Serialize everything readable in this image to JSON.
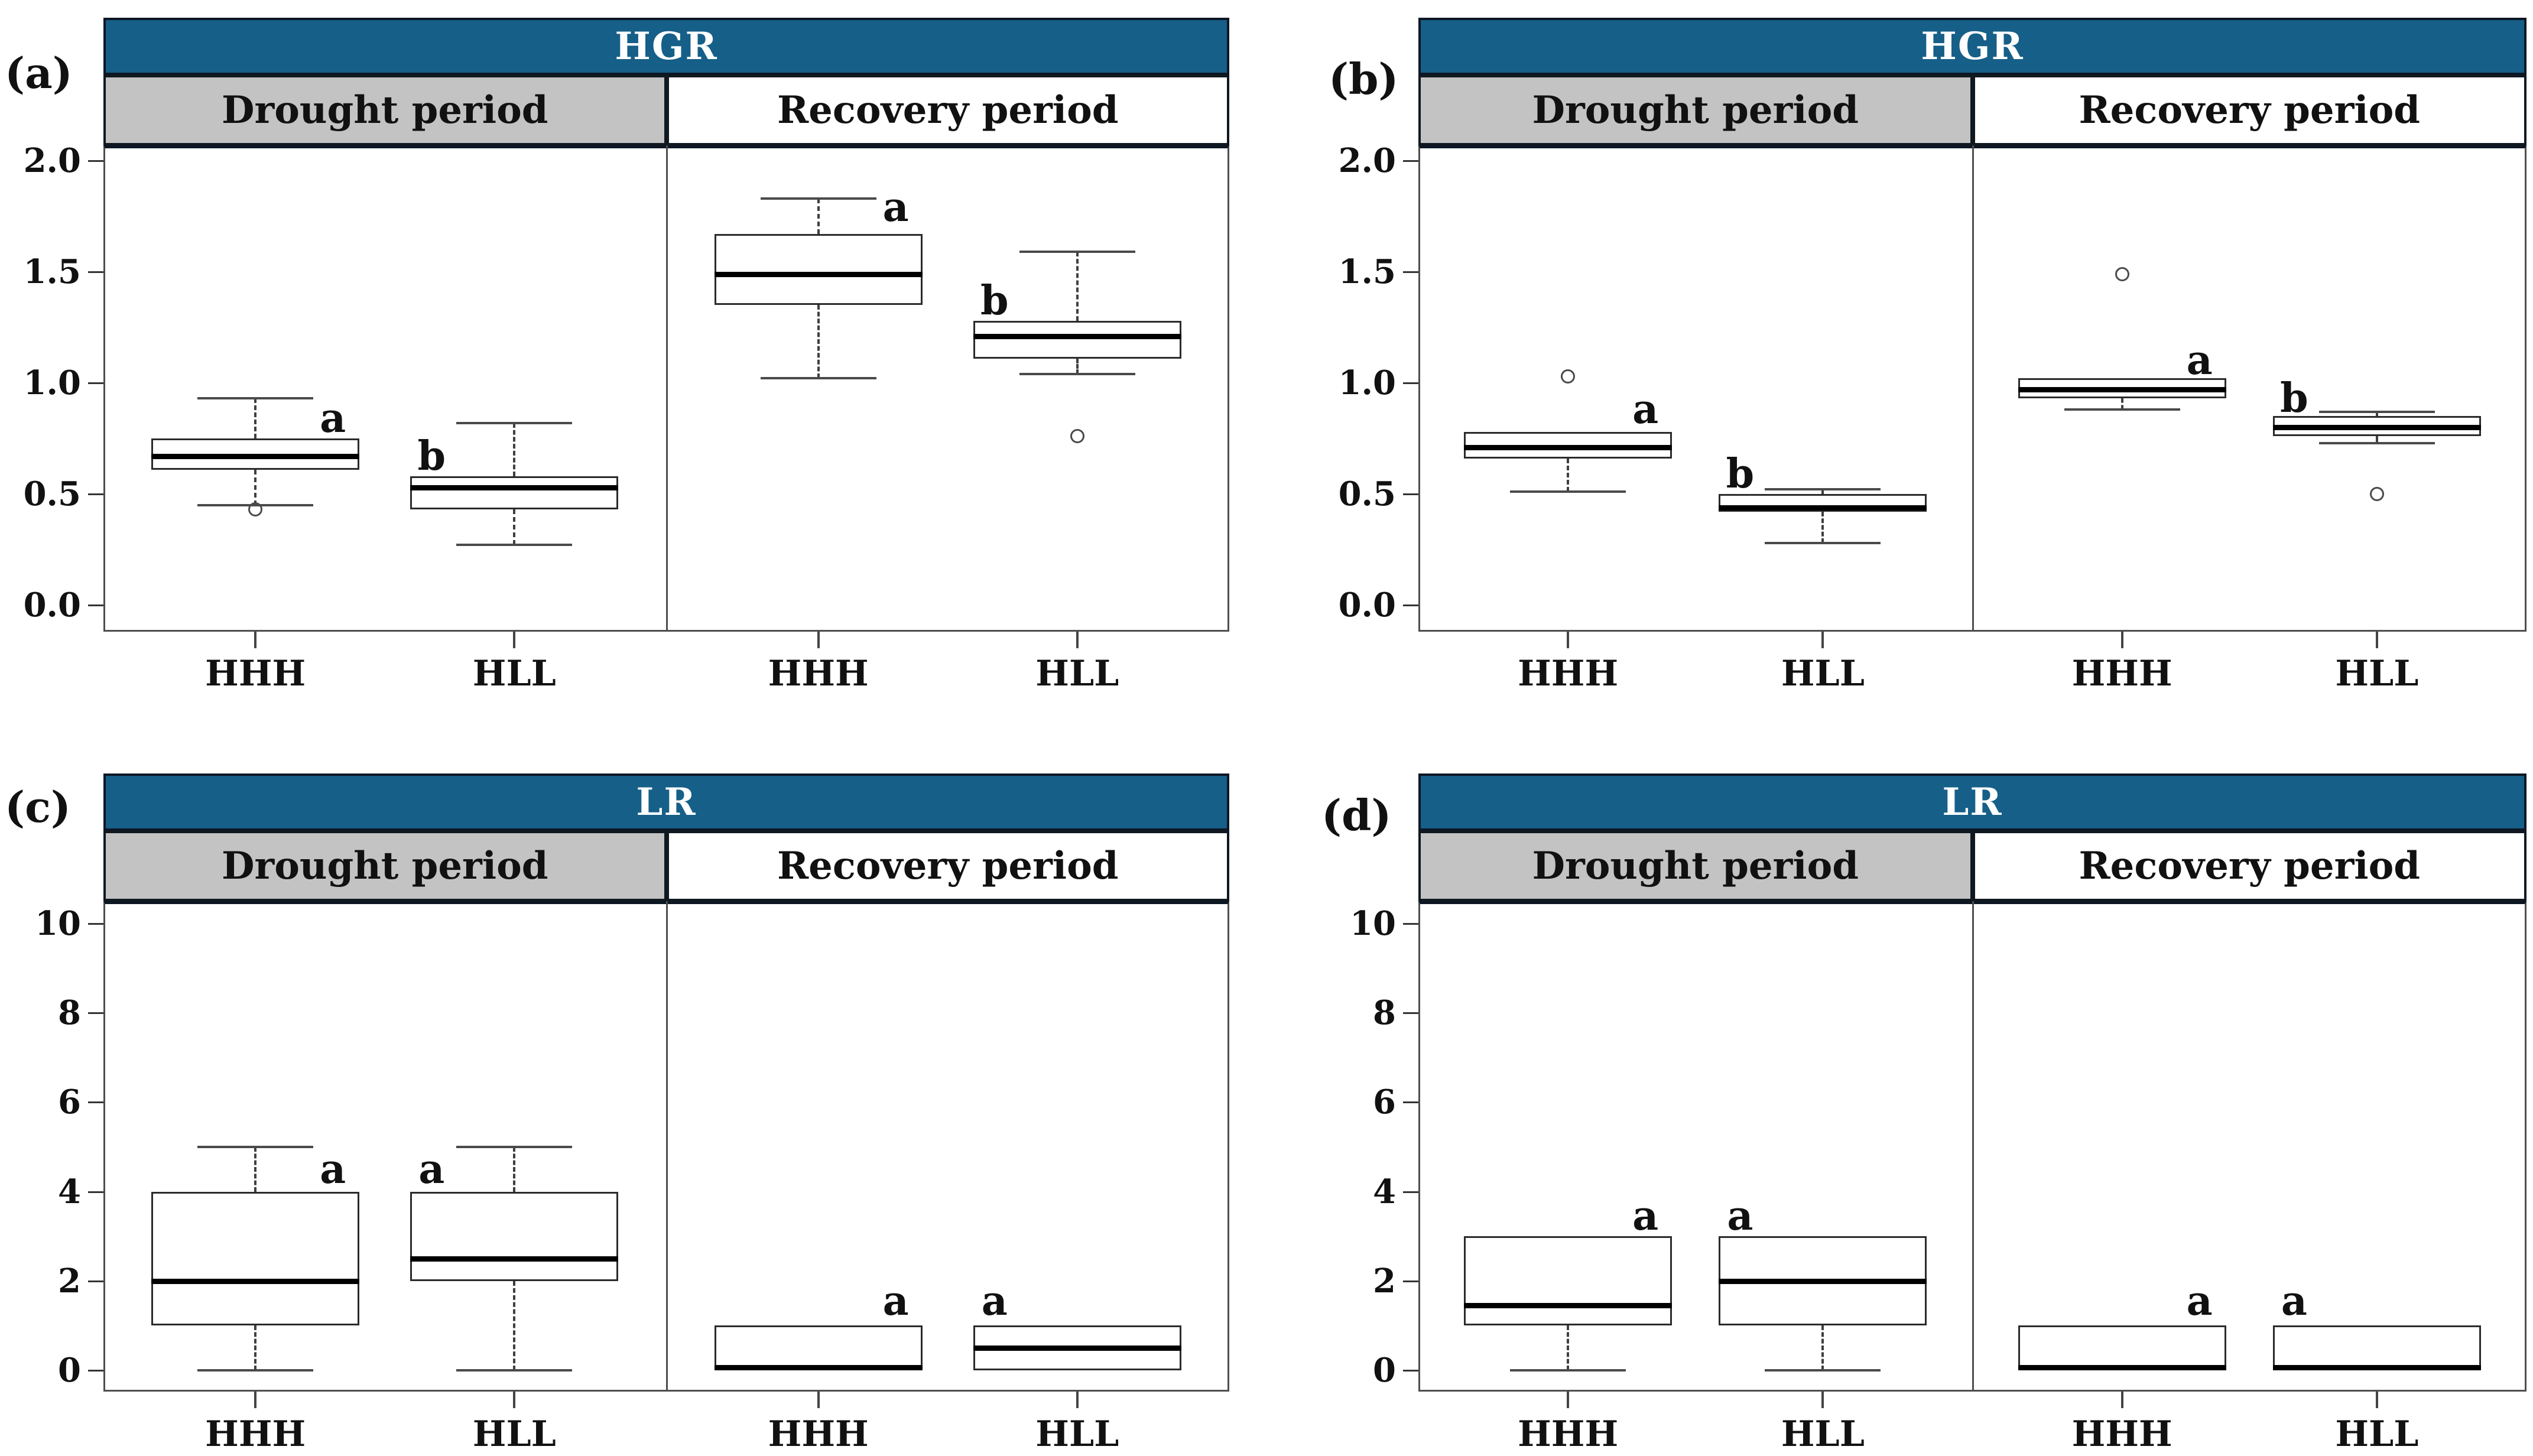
{
  "colors": {
    "header_bg": "#165f88",
    "header_text": "#ffffff",
    "drought_header_bg": "#c3c3c3",
    "recovery_header_bg": "#ffffff",
    "header_border": "#0d1724",
    "plot_border": "#4e4e4e",
    "box_border": "#2b2b2b",
    "median_color": "#000000",
    "whisker_color": "#4a4a4a",
    "text_color": "#111111"
  },
  "chart_data": [
    {
      "id": "a",
      "panel_label": "(a)",
      "title": "HGR",
      "type": "boxplot",
      "categories": [
        "HHH",
        "HLL"
      ],
      "yticks": [
        0.0,
        0.5,
        1.0,
        1.5,
        2.0
      ],
      "ytick_labels": [
        "0.0",
        "0.5",
        "1.0",
        "1.5",
        "2.0"
      ],
      "ylim": [
        -0.12,
        2.07
      ],
      "sections": [
        {
          "name": "Drought period",
          "boxes": [
            {
              "group": "HHH",
              "lo": 0.45,
              "q1": 0.61,
              "median": 0.67,
              "q3": 0.75,
              "hi": 0.93,
              "outliers": [
                0.43
              ],
              "letter": "a",
              "letter_side": "right",
              "letter_y": 0.84
            },
            {
              "group": "HLL",
              "lo": 0.27,
              "q1": 0.43,
              "median": 0.53,
              "q3": 0.58,
              "hi": 0.82,
              "outliers": [],
              "letter": "b",
              "letter_side": "left",
              "letter_y": 0.67
            }
          ]
        },
        {
          "name": "Recovery period",
          "boxes": [
            {
              "group": "HHH",
              "lo": 1.02,
              "q1": 1.35,
              "median": 1.49,
              "q3": 1.67,
              "hi": 1.83,
              "outliers": [],
              "letter": "a",
              "letter_side": "right",
              "letter_y": 1.79
            },
            {
              "group": "HLL",
              "lo": 1.04,
              "q1": 1.11,
              "median": 1.21,
              "q3": 1.28,
              "hi": 1.59,
              "outliers": [
                0.76
              ],
              "letter": "b",
              "letter_side": "left",
              "letter_y": 1.37
            }
          ]
        }
      ]
    },
    {
      "id": "b",
      "panel_label": "(b)",
      "title": "HGR",
      "type": "boxplot",
      "categories": [
        "HHH",
        "HLL"
      ],
      "yticks": [
        0.0,
        0.5,
        1.0,
        1.5,
        2.0
      ],
      "ytick_labels": [
        "0.0",
        "0.5",
        "1.0",
        "1.5",
        "2.0"
      ],
      "ylim": [
        -0.12,
        2.07
      ],
      "sections": [
        {
          "name": "Drought period",
          "boxes": [
            {
              "group": "HHH",
              "lo": 0.51,
              "q1": 0.66,
              "median": 0.71,
              "q3": 0.78,
              "hi": null,
              "outliers": [
                1.03
              ],
              "letter": "a",
              "letter_side": "right",
              "letter_y": 0.88
            },
            {
              "group": "HLL",
              "lo": 0.28,
              "q1": 0.42,
              "median": 0.44,
              "q3": 0.5,
              "hi": 0.52,
              "outliers": [],
              "letter": "b",
              "letter_side": "left",
              "letter_y": 0.59
            }
          ]
        },
        {
          "name": "Recovery period",
          "boxes": [
            {
              "group": "HHH",
              "lo": 0.88,
              "q1": 0.93,
              "median": 0.97,
              "q3": 1.02,
              "hi": null,
              "outliers": [
                1.49
              ],
              "letter": "a",
              "letter_side": "right",
              "letter_y": 1.1
            },
            {
              "group": "HLL",
              "lo": 0.73,
              "q1": 0.76,
              "median": 0.8,
              "q3": 0.85,
              "hi": 0.87,
              "outliers": [
                0.5
              ],
              "letter": "b",
              "letter_side": "left",
              "letter_y": 0.93
            }
          ]
        }
      ]
    },
    {
      "id": "c",
      "panel_label": "(c)",
      "title": "LR",
      "type": "boxplot",
      "categories": [
        "HHH",
        "HLL"
      ],
      "yticks": [
        0,
        2,
        4,
        6,
        8,
        10
      ],
      "ytick_labels": [
        "0",
        "2",
        "4",
        "6",
        "8",
        "10"
      ],
      "ylim": [
        -0.48,
        10.5
      ],
      "sections": [
        {
          "name": "Drought period",
          "boxes": [
            {
              "group": "HHH",
              "lo": 0,
              "q1": 1,
              "median": 2,
              "q3": 4,
              "hi": 5,
              "outliers": [],
              "letter": "a",
              "letter_side": "right",
              "letter_y": 4.5
            },
            {
              "group": "HLL",
              "lo": 0,
              "q1": 2,
              "median": 2.5,
              "q3": 4,
              "hi": 5,
              "outliers": [],
              "letter": "a",
              "letter_side": "left",
              "letter_y": 4.5
            }
          ]
        },
        {
          "name": "Recovery period",
          "boxes": [
            {
              "group": "HHH",
              "lo": null,
              "q1": 0,
              "median": 0.07,
              "q3": 1,
              "hi": null,
              "outliers": [],
              "letter": "a",
              "letter_side": "right",
              "letter_y": 1.55
            },
            {
              "group": "HLL",
              "lo": null,
              "q1": 0,
              "median": 0.5,
              "q3": 1,
              "hi": null,
              "outliers": [],
              "letter": "a",
              "letter_side": "left",
              "letter_y": 1.55
            }
          ]
        }
      ]
    },
    {
      "id": "d",
      "panel_label": "(d)",
      "title": "LR",
      "type": "boxplot",
      "categories": [
        "HHH",
        "HLL"
      ],
      "yticks": [
        0,
        2,
        4,
        6,
        8,
        10
      ],
      "ytick_labels": [
        "0",
        "2",
        "4",
        "6",
        "8",
        "10"
      ],
      "ylim": [
        -0.48,
        10.5
      ],
      "sections": [
        {
          "name": "Drought period",
          "boxes": [
            {
              "group": "HHH",
              "lo": 0,
              "q1": 1,
              "median": 1.45,
              "q3": 3,
              "hi": null,
              "outliers": [],
              "letter": "a",
              "letter_side": "right",
              "letter_y": 3.45
            },
            {
              "group": "HLL",
              "lo": 0,
              "q1": 1,
              "median": 2,
              "q3": 3,
              "hi": null,
              "outliers": [],
              "letter": "a",
              "letter_side": "left",
              "letter_y": 3.45
            }
          ]
        },
        {
          "name": "Recovery period",
          "boxes": [
            {
              "group": "HHH",
              "lo": null,
              "q1": 0,
              "median": 0.07,
              "q3": 1,
              "hi": null,
              "outliers": [],
              "letter": "a",
              "letter_side": "right",
              "letter_y": 1.55
            },
            {
              "group": "HLL",
              "lo": null,
              "q1": 0,
              "median": 0.07,
              "q3": 1,
              "hi": null,
              "outliers": [],
              "letter": "a",
              "letter_side": "left",
              "letter_y": 1.55
            }
          ]
        }
      ]
    }
  ]
}
